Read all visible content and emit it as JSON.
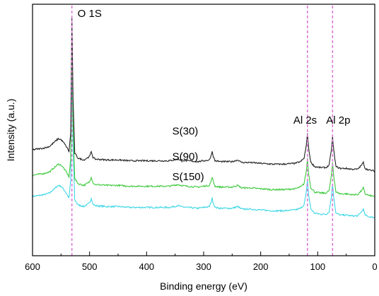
{
  "chart_data": {
    "type": "line",
    "title": "",
    "xlabel": "Binding energy (eV)",
    "ylabel": "Intensity (a.u.)",
    "xlim": [
      600,
      0
    ],
    "x_reversed": true,
    "xticks": [
      600,
      500,
      400,
      300,
      200,
      100,
      0
    ],
    "yticks_shown": false,
    "grid": false,
    "legend": "none",
    "peak_markers": [
      {
        "label": "O 1S",
        "x": 531,
        "color": "#e07ad8"
      },
      {
        "label": "Al 2s",
        "x": 118,
        "color": "#e07ad8"
      },
      {
        "label": "Al 2p",
        "x": 74,
        "color": "#e07ad8"
      }
    ],
    "series": [
      {
        "name": "S(30)",
        "color": "#222222",
        "baseline": 0.0,
        "label_pos": {
          "x": 355,
          "y": 0.18
        }
      },
      {
        "name": "S(90)",
        "color": "#3ec93e",
        "baseline": -0.3,
        "label_pos": {
          "x": 355,
          "y": -0.12
        }
      },
      {
        "name": "S(150)",
        "color": "#3fd7e6",
        "baseline": -0.55,
        "label_pos": {
          "x": 355,
          "y": -0.36
        }
      }
    ],
    "profile": {
      "x": [
        600,
        590,
        580,
        570,
        560,
        555,
        550,
        545,
        540,
        536,
        533,
        531,
        529,
        526,
        520,
        510,
        500,
        497,
        494,
        490,
        470,
        450,
        430,
        400,
        380,
        360,
        345,
        340,
        330,
        310,
        290,
        287,
        285,
        283,
        280,
        270,
        250,
        240,
        236,
        232,
        220,
        200,
        180,
        160,
        140,
        130,
        124,
        120,
        118,
        116,
        112,
        105,
        95,
        85,
        80,
        76,
        74,
        72,
        68,
        60,
        50,
        40,
        30,
        23,
        20,
        17,
        10,
        0
      ],
      "y": [
        0.0,
        0.01,
        0.02,
        0.04,
        0.1,
        0.13,
        0.12,
        0.08,
        0.03,
        -0.02,
        0.2,
        1.55,
        0.6,
        -0.04,
        -0.1,
        -0.12,
        -0.08,
        -0.02,
        -0.09,
        -0.11,
        -0.12,
        -0.12,
        -0.13,
        -0.13,
        -0.13,
        -0.13,
        -0.11,
        -0.12,
        -0.13,
        -0.14,
        -0.12,
        -0.07,
        -0.02,
        -0.08,
        -0.13,
        -0.14,
        -0.14,
        -0.12,
        -0.14,
        -0.15,
        -0.15,
        -0.16,
        -0.17,
        -0.17,
        -0.16,
        -0.14,
        -0.1,
        0.05,
        0.2,
        0.02,
        -0.15,
        -0.2,
        -0.21,
        -0.21,
        -0.18,
        0.0,
        0.15,
        0.0,
        -0.2,
        -0.22,
        -0.22,
        -0.23,
        -0.23,
        -0.18,
        -0.15,
        -0.22,
        -0.24,
        -0.25
      ]
    }
  }
}
